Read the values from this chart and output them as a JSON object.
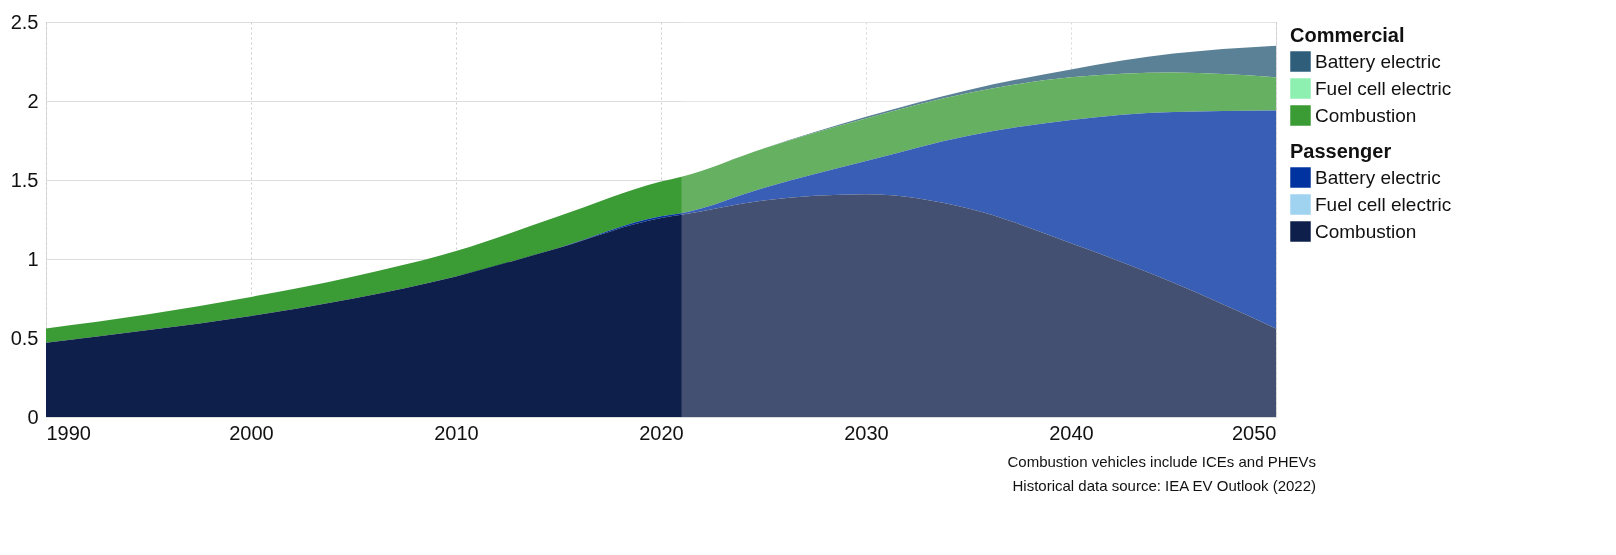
{
  "chart_data": {
    "type": "area",
    "stacked": true,
    "x": [
      1990,
      1995,
      2000,
      2005,
      2010,
      2015,
      2020,
      2021,
      2025,
      2030,
      2035,
      2040,
      2045,
      2050
    ],
    "series": [
      {
        "name": "Combustion",
        "color": "#0f1f4b",
        "values": [
          0.47,
          0.55,
          0.64,
          0.75,
          0.89,
          1.07,
          1.26,
          1.28,
          1.37,
          1.41,
          1.32,
          1.1,
          0.85,
          0.56
        ]
      },
      {
        "name": "Fuel cell electric",
        "color": "#9fd3f0",
        "values": [
          null,
          null,
          null,
          null,
          null,
          null,
          null,
          null,
          null,
          null,
          null,
          null,
          null,
          null
        ]
      },
      {
        "name": "Battery electric",
        "color": "#0033a0",
        "values": [
          0,
          0,
          0,
          0,
          0,
          0,
          0.01,
          0.01,
          0.08,
          0.21,
          0.46,
          0.78,
          1.08,
          1.38
        ]
      },
      {
        "name": "Combustion",
        "color": "#3b9b35",
        "values": [
          0.09,
          0.1,
          0.12,
          0.14,
          0.16,
          0.2,
          0.22,
          0.23,
          0.25,
          0.27,
          0.27,
          0.27,
          0.25,
          0.21
        ]
      },
      {
        "name": "Fuel cell electric",
        "color": "#8ef0b0",
        "values": [
          null,
          null,
          null,
          null,
          null,
          null,
          null,
          null,
          null,
          null,
          null,
          null,
          null,
          null
        ]
      },
      {
        "name": "Battery electric",
        "color": "#2e5e7a",
        "values": [
          0,
          0,
          0,
          0,
          0,
          0,
          0,
          0,
          0,
          0.01,
          0.02,
          0.05,
          0.12,
          0.2
        ]
      }
    ],
    "legend_title": [
      "Commercial",
      "Passenger"
    ],
    "legend": "top right",
    "xlim": [
      1990,
      2050
    ],
    "xticks": [
      1990,
      2000,
      2010,
      2020,
      2030,
      2040,
      2050
    ],
    "ylim": [
      0,
      2.5
    ],
    "yticks": [
      0,
      0.5,
      1,
      1.5,
      2,
      2.5
    ],
    "grid": true,
    "bands": [
      {
        "axis": "x",
        "from": 2021,
        "to": 2050,
        "color": "#ffffff"
      }
    ],
    "annotations": [
      "Combustion vehicles include ICEs and PHEVs",
      "Historical data source: IEA EV Outlook (2022)"
    ]
  }
}
